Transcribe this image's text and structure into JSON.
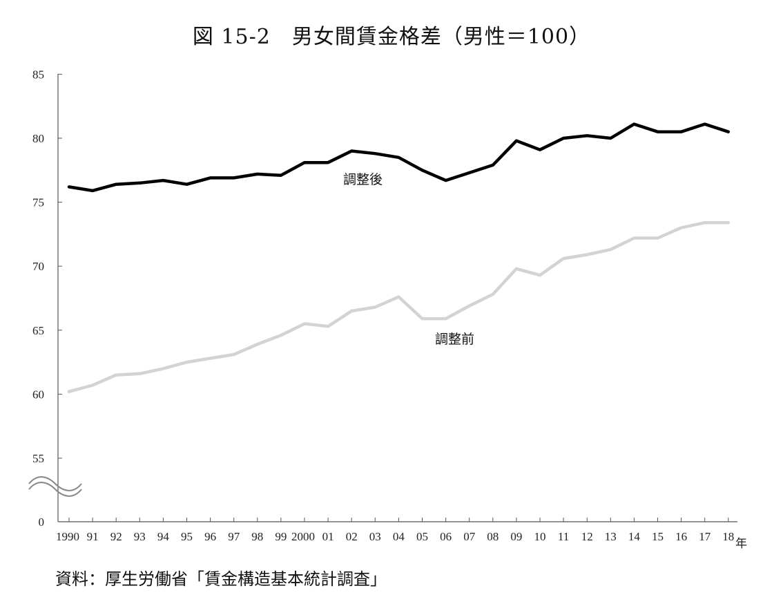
{
  "title": "図 15-2　男女間賃金格差（男性＝100）",
  "source": "資料：厚生労働省「賃金構造基本統計調査」",
  "chart_data": {
    "type": "line",
    "title": "図 15-2　男女間賃金格差（男性＝100）",
    "x_unit": "年",
    "x_tick_labels": [
      "1990",
      "91",
      "92",
      "93",
      "94",
      "95",
      "96",
      "97",
      "98",
      "99",
      "2000",
      "01",
      "02",
      "03",
      "04",
      "05",
      "06",
      "07",
      "08",
      "09",
      "10",
      "11",
      "12",
      "13",
      "14",
      "15",
      "16",
      "17",
      "18"
    ],
    "y_ticks": [
      "85",
      "80",
      "75",
      "70",
      "65",
      "60",
      "55",
      "0"
    ],
    "ylim": [
      0,
      85
    ],
    "axis_break": true,
    "grid": false,
    "colors": {
      "adjusted": "#000000",
      "unadjusted": "#d3d3d3"
    },
    "series": [
      {
        "name": "調整後",
        "values": [
          76.2,
          75.9,
          76.4,
          76.5,
          76.7,
          76.4,
          76.9,
          76.9,
          77.2,
          77.1,
          78.1,
          78.1,
          79.0,
          78.8,
          78.5,
          77.5,
          76.7,
          77.3,
          77.9,
          79.8,
          79.1,
          80.0,
          80.2,
          80.0,
          81.1,
          80.5,
          80.5,
          81.1,
          80.5
        ]
      },
      {
        "name": "調整前",
        "values": [
          60.2,
          60.7,
          61.5,
          61.6,
          62.0,
          62.5,
          62.8,
          63.1,
          63.9,
          64.6,
          65.5,
          65.3,
          66.5,
          66.8,
          67.6,
          65.9,
          65.9,
          66.9,
          67.8,
          69.8,
          69.3,
          70.6,
          70.9,
          71.3,
          72.2,
          72.2,
          73.0,
          73.4,
          73.4
        ]
      }
    ]
  }
}
